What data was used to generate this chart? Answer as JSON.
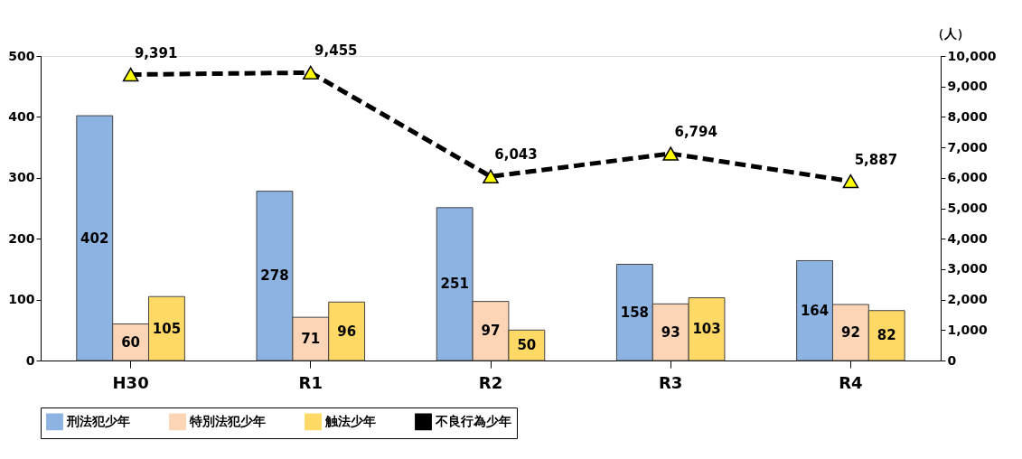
{
  "chart_data": {
    "type": "bar",
    "categories": [
      "H30",
      "R1",
      "R2",
      "R3",
      "R4"
    ],
    "y2label": "（人）",
    "series": [
      {
        "name": "刑法犯少年",
        "color": "#8db3e2",
        "values": [
          402,
          278,
          251,
          158,
          164
        ]
      },
      {
        "name": "特別法犯少年",
        "color": "#fbd5b5",
        "values": [
          60,
          71,
          97,
          93,
          92
        ]
      },
      {
        "name": "触法少年",
        "color": "#ffd966",
        "values": [
          105,
          96,
          50,
          103,
          82
        ]
      },
      {
        "name": "不良行為少年",
        "type": "line",
        "axis": "y2",
        "color": "#000000",
        "marker": "triangle",
        "line_style": "dashed",
        "values": [
          9391,
          9455,
          6043,
          6794,
          5887
        ],
        "value_labels": [
          "9,391",
          "9,455",
          "6,043",
          "6,794",
          "5,887"
        ]
      }
    ],
    "ylim": [
      0,
      500
    ],
    "yticks": [
      0,
      100,
      200,
      300,
      400,
      500
    ],
    "y2lim": [
      0,
      10000
    ],
    "y2ticks": [
      0,
      {
        "value": 1000,
        "label": "1,000"
      },
      {
        "value": 2000,
        "label": "2,000"
      },
      {
        "value": 3000,
        "label": "3,000"
      },
      {
        "value": 4000,
        "label": "4,000"
      },
      {
        "value": 5000,
        "label": "5,000"
      },
      {
        "value": 6000,
        "label": "6,000"
      },
      {
        "value": 7000,
        "label": "7,000"
      },
      {
        "value": 8000,
        "label": "8,000"
      },
      {
        "value": 9000,
        "label": "9,000"
      },
      {
        "value": 10000,
        "label": "10,000"
      }
    ],
    "data_labels": true,
    "grid": false,
    "legend": "bottom"
  }
}
